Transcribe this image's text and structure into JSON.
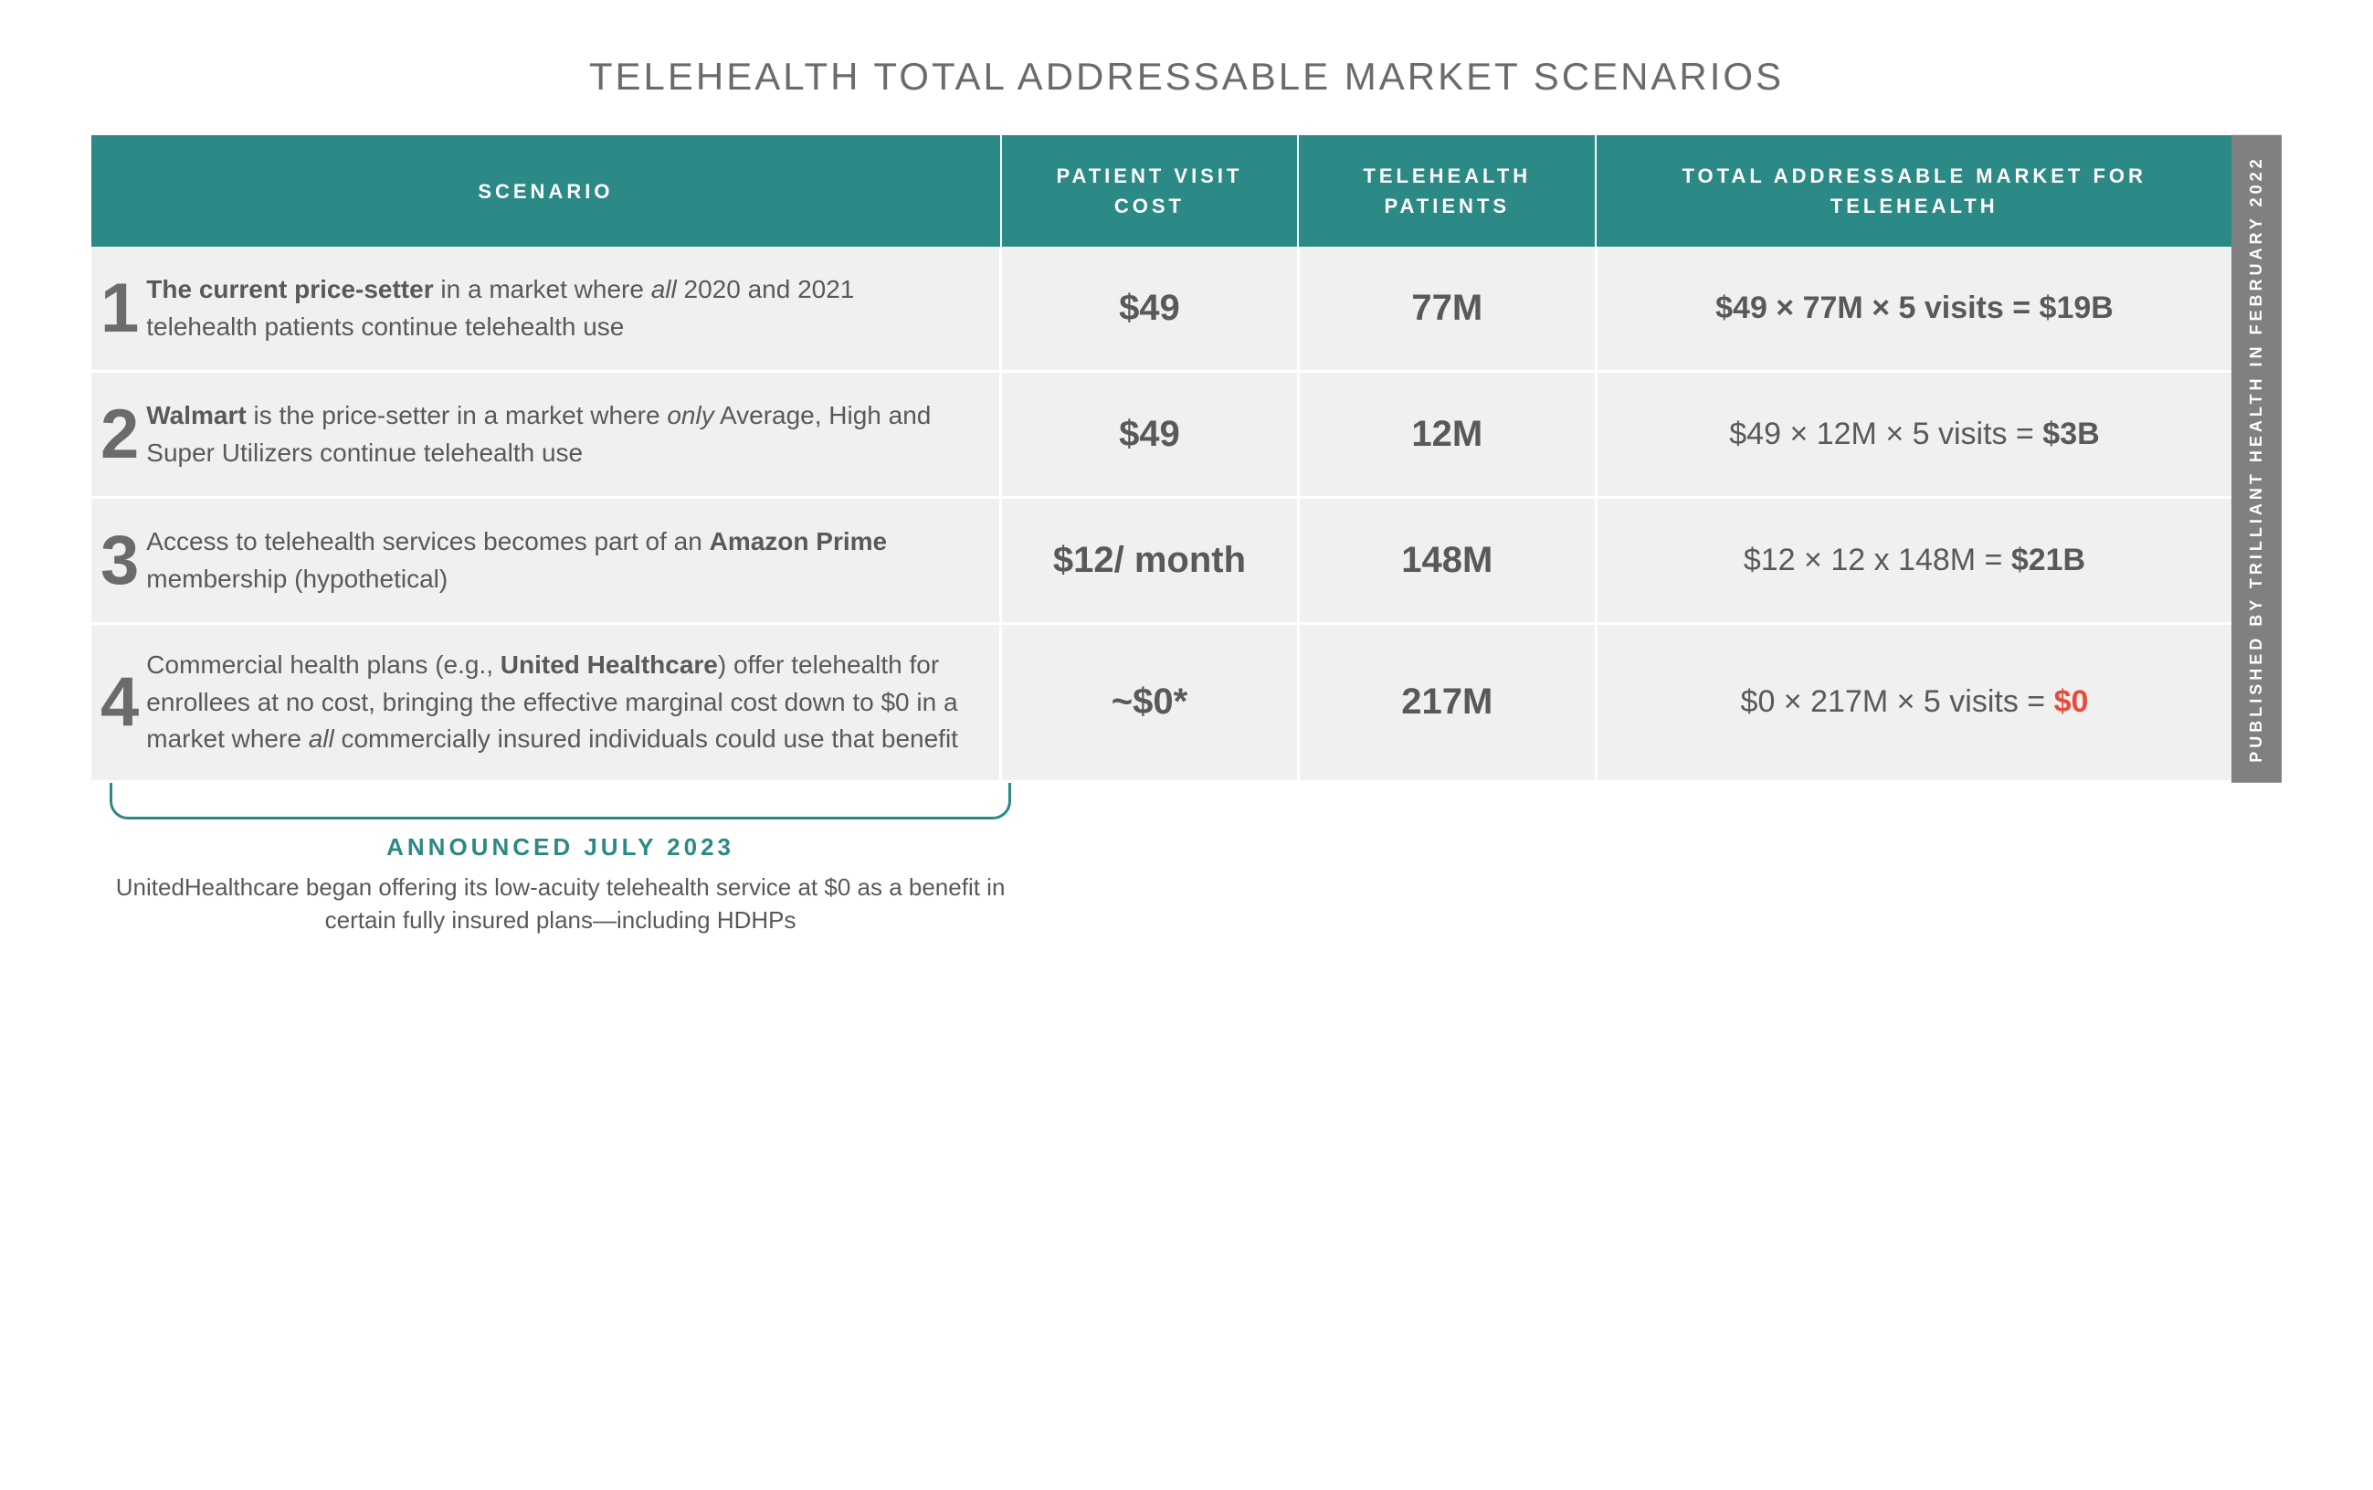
{
  "title": "TELEHEALTH TOTAL ADDRESSABLE MARKET SCENARIOS",
  "colors": {
    "header_bg": "#2b8986",
    "header_text": "#ffffff",
    "row_bg": "#f0f0f0",
    "text": "#595959",
    "sidebar_bg": "#808080",
    "accent_red": "#e74c3c"
  },
  "columns": {
    "scenario": "SCENARIO",
    "cost": "PATIENT VISIT COST",
    "patients": "TELEHEALTH PATIENTS",
    "tam": "TOTAL ADDRESSABLE MARKET FOR TELEHEALTH"
  },
  "rows": [
    {
      "num": "1",
      "scenario_html": "<span class=\"bold\">The current price-setter</span> in a market where <span class=\"ital\">all</span> 2020 and 2021 telehealth patients continue telehealth use",
      "cost": "$49",
      "patients": "77M",
      "tam_html": "<span class=\"bold\">$49 × 77M × 5 visits =  $19B</span>"
    },
    {
      "num": "2",
      "scenario_html": "<span class=\"bold\">Walmart</span> is the price-setter in a market where <span class=\"ital\">only</span> Average, High and Super Utilizers continue telehealth use",
      "cost": "$49",
      "patients": "12M",
      "tam_html": "$49 × 12M × 5 visits = <span class=\"bold\">$3B</span>"
    },
    {
      "num": "3",
      "scenario_html": "Access to telehealth services becomes part of an <span class=\"bold\">Amazon Prime</span> membership (hypothetical)",
      "cost": "$12/ month",
      "patients": "148M",
      "tam_html": "$12 × 12 x 148M = <span class=\"bold\">$21B</span>"
    },
    {
      "num": "4",
      "scenario_html": "Commercial health plans (e.g., <span class=\"bold\">United Healthcare</span>) offer telehealth for enrollees at no cost, bringing the effective marginal cost down to $0 in a market where <span class=\"ital\">all</span> commercially insured individuals could use that benefit",
      "cost": "~$0*",
      "patients": "217M",
      "tam_html": "$0 × 217M × 5 visits = <span class=\"red\">$0</span>"
    }
  ],
  "sidebar": "PUBLISHED BY TRILLIANT HEALTH IN FEBRUARY 2022",
  "annotation": {
    "title": "ANNOUNCED JULY 2023",
    "text": "UnitedHealthcare began offering its low-acuity telehealth service at $0 as a benefit in certain fully insured plans—including HDHPs"
  }
}
